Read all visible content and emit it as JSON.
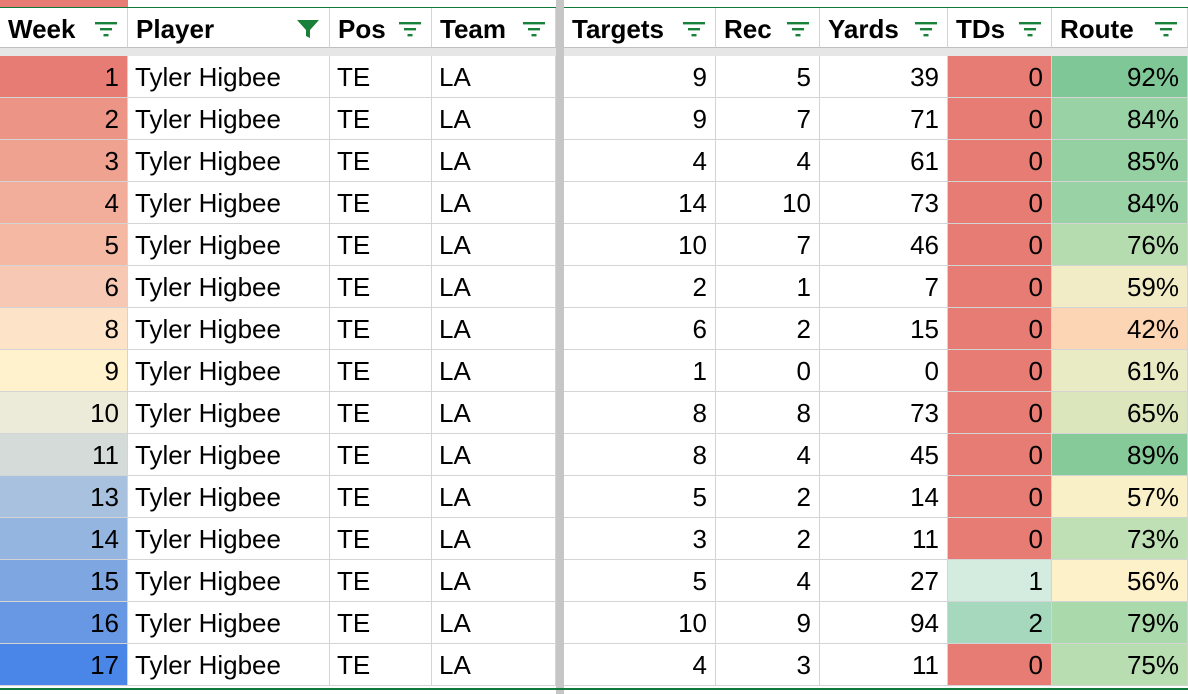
{
  "headers": [
    {
      "label": "Week",
      "filter_active": false
    },
    {
      "label": "Player",
      "filter_active": true
    },
    {
      "label": "Pos",
      "filter_active": false
    },
    {
      "label": "Team",
      "filter_active": false
    },
    {
      "label": "Targets",
      "filter_active": false
    },
    {
      "label": "Rec",
      "filter_active": false
    },
    {
      "label": "Yards",
      "filter_active": false
    },
    {
      "label": "TDs",
      "filter_active": false
    },
    {
      "label": "Route",
      "filter_active": false
    }
  ],
  "rows": [
    {
      "week": "1",
      "player": "Tyler Higbee",
      "pos": "TE",
      "team": "LA",
      "targets": "9",
      "rec": "5",
      "yards": "39",
      "tds": "0",
      "route": "92%",
      "week_color": "#e67c73",
      "tds_color": "#e67c73",
      "route_color": "#7fc797"
    },
    {
      "week": "2",
      "player": "Tyler Higbee",
      "pos": "TE",
      "team": "LA",
      "targets": "9",
      "rec": "7",
      "yards": "71",
      "tds": "0",
      "route": "84%",
      "week_color": "#ec9486",
      "tds_color": "#e67c73",
      "route_color": "#98d2a5"
    },
    {
      "week": "3",
      "player": "Tyler Higbee",
      "pos": "TE",
      "team": "LA",
      "targets": "4",
      "rec": "4",
      "yards": "61",
      "tds": "0",
      "route": "85%",
      "week_color": "#efa290",
      "tds_color": "#e67c73",
      "route_color": "#94d0a2"
    },
    {
      "week": "4",
      "player": "Tyler Higbee",
      "pos": "TE",
      "team": "LA",
      "targets": "14",
      "rec": "10",
      "yards": "73",
      "tds": "0",
      "route": "84%",
      "week_color": "#f2ae9b",
      "tds_color": "#e67c73",
      "route_color": "#98d2a5"
    },
    {
      "week": "5",
      "player": "Tyler Higbee",
      "pos": "TE",
      "team": "LA",
      "targets": "10",
      "rec": "7",
      "yards": "46",
      "tds": "0",
      "route": "76%",
      "week_color": "#f4b8a3",
      "tds_color": "#e67c73",
      "route_color": "#b5dcae"
    },
    {
      "week": "6",
      "player": "Tyler Higbee",
      "pos": "TE",
      "team": "LA",
      "targets": "2",
      "rec": "1",
      "yards": "7",
      "tds": "0",
      "route": "59%",
      "week_color": "#f7c9b5",
      "tds_color": "#e67c73",
      "route_color": "#f1ecc6"
    },
    {
      "week": "8",
      "player": "Tyler Higbee",
      "pos": "TE",
      "team": "LA",
      "targets": "6",
      "rec": "2",
      "yards": "15",
      "tds": "0",
      "route": "42%",
      "week_color": "#fde4c8",
      "tds_color": "#e67c73",
      "route_color": "#fbd5b4"
    },
    {
      "week": "9",
      "player": "Tyler Higbee",
      "pos": "TE",
      "team": "LA",
      "targets": "1",
      "rec": "0",
      "yards": "0",
      "tds": "0",
      "route": "61%",
      "week_color": "#fff2cc",
      "tds_color": "#e67c73",
      "route_color": "#e8ebc4"
    },
    {
      "week": "10",
      "player": "Tyler Higbee",
      "pos": "TE",
      "team": "LA",
      "targets": "8",
      "rec": "8",
      "yards": "73",
      "tds": "0",
      "route": "65%",
      "week_color": "#ecead8",
      "tds_color": "#e67c73",
      "route_color": "#dbe6bd"
    },
    {
      "week": "11",
      "player": "Tyler Higbee",
      "pos": "TE",
      "team": "LA",
      "targets": "8",
      "rec": "4",
      "yards": "45",
      "tds": "0",
      "route": "89%",
      "week_color": "#d5dbd8",
      "tds_color": "#e67c73",
      "route_color": "#87ca9a"
    },
    {
      "week": "13",
      "player": "Tyler Higbee",
      "pos": "TE",
      "team": "LA",
      "targets": "5",
      "rec": "2",
      "yards": "14",
      "tds": "0",
      "route": "57%",
      "week_color": "#a7c1df",
      "tds_color": "#e67c73",
      "route_color": "#f9f0c8"
    },
    {
      "week": "14",
      "player": "Tyler Higbee",
      "pos": "TE",
      "team": "LA",
      "targets": "3",
      "rec": "2",
      "yards": "11",
      "tds": "0",
      "route": "73%",
      "week_color": "#93b5e0",
      "tds_color": "#e67c73",
      "route_color": "#bfe0b4"
    },
    {
      "week": "15",
      "player": "Tyler Higbee",
      "pos": "TE",
      "team": "LA",
      "targets": "5",
      "rec": "4",
      "yards": "27",
      "tds": "1",
      "route": "56%",
      "week_color": "#7ea7e2",
      "tds_color": "#d4ece0",
      "route_color": "#fdf1c9"
    },
    {
      "week": "16",
      "player": "Tyler Higbee",
      "pos": "TE",
      "team": "LA",
      "targets": "10",
      "rec": "9",
      "yards": "94",
      "tds": "2",
      "route": "79%",
      "week_color": "#6897e3",
      "tds_color": "#a6d8bd",
      "route_color": "#aad9ab"
    },
    {
      "week": "17",
      "player": "Tyler Higbee",
      "pos": "TE",
      "team": "LA",
      "targets": "4",
      "rec": "3",
      "yards": "11",
      "tds": "0",
      "route": "75%",
      "week_color": "#4a86e8",
      "tds_color": "#e67c73",
      "route_color": "#b8ddb0"
    }
  ],
  "colors": {
    "filter_icon": "#188038",
    "frozen_divider": "#c6c6c6",
    "header_border": "#0f7a3c"
  }
}
